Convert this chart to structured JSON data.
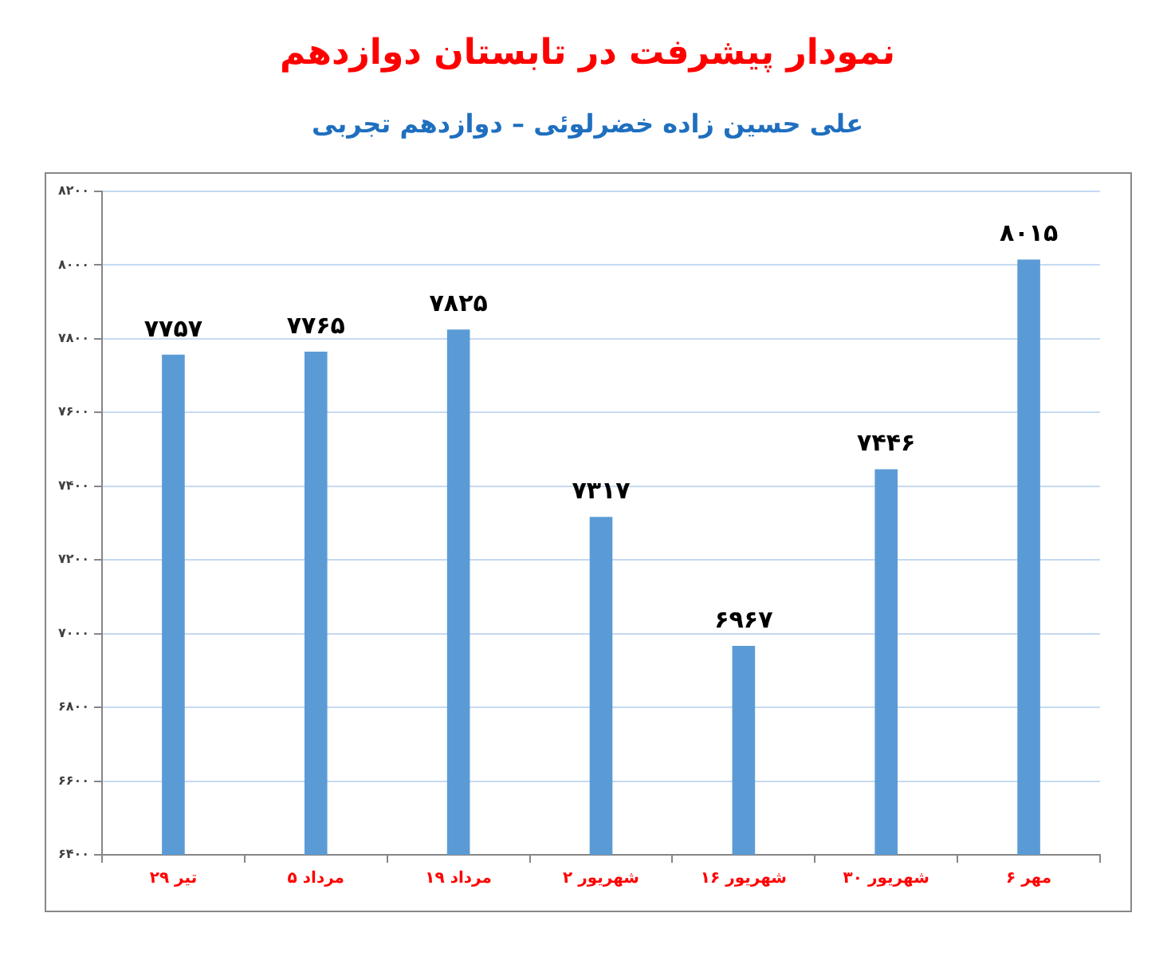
{
  "chart_data": {
    "type": "bar",
    "title": "نمودار پیشرفت در تابستان دوازدهم",
    "subtitle": "علی حسین زاده خضرلوئی – دوازدهم تجربی",
    "categories": [
      "۲۹ تیر",
      "۵ مرداد",
      "۱۹ مرداد",
      "۲ شهریور",
      "۱۶ شهریور",
      "۳۰ شهریور",
      "۶ مهر"
    ],
    "values": [
      7757,
      7765,
      7825,
      7317,
      6967,
      7446,
      8015
    ],
    "value_labels": [
      "۷۷۵۷",
      "۷۷۶۵",
      "۷۸۲۵",
      "۷۳۱۷",
      "۶۹۶۷",
      "۷۴۴۶",
      "۸۰۱۵"
    ],
    "color": "#5b9bd5",
    "ylim": [
      6400,
      8200
    ],
    "yticks": [
      {
        "value": 6400,
        "label": "۶۴۰۰"
      },
      {
        "value": 6600,
        "label": "۶۶۰۰"
      },
      {
        "value": 6800,
        "label": "۶۸۰۰"
      },
      {
        "value": 7000,
        "label": "۷۰۰۰"
      },
      {
        "value": 7200,
        "label": "۷۲۰۰"
      },
      {
        "value": 7400,
        "label": "۷۴۰۰"
      },
      {
        "value": 7600,
        "label": "۷۶۰۰"
      },
      {
        "value": 7800,
        "label": "۷۸۰۰"
      },
      {
        "value": 8000,
        "label": "۸۰۰۰"
      },
      {
        "value": 8200,
        "label": "۸۲۰۰"
      }
    ],
    "grid": "y"
  }
}
